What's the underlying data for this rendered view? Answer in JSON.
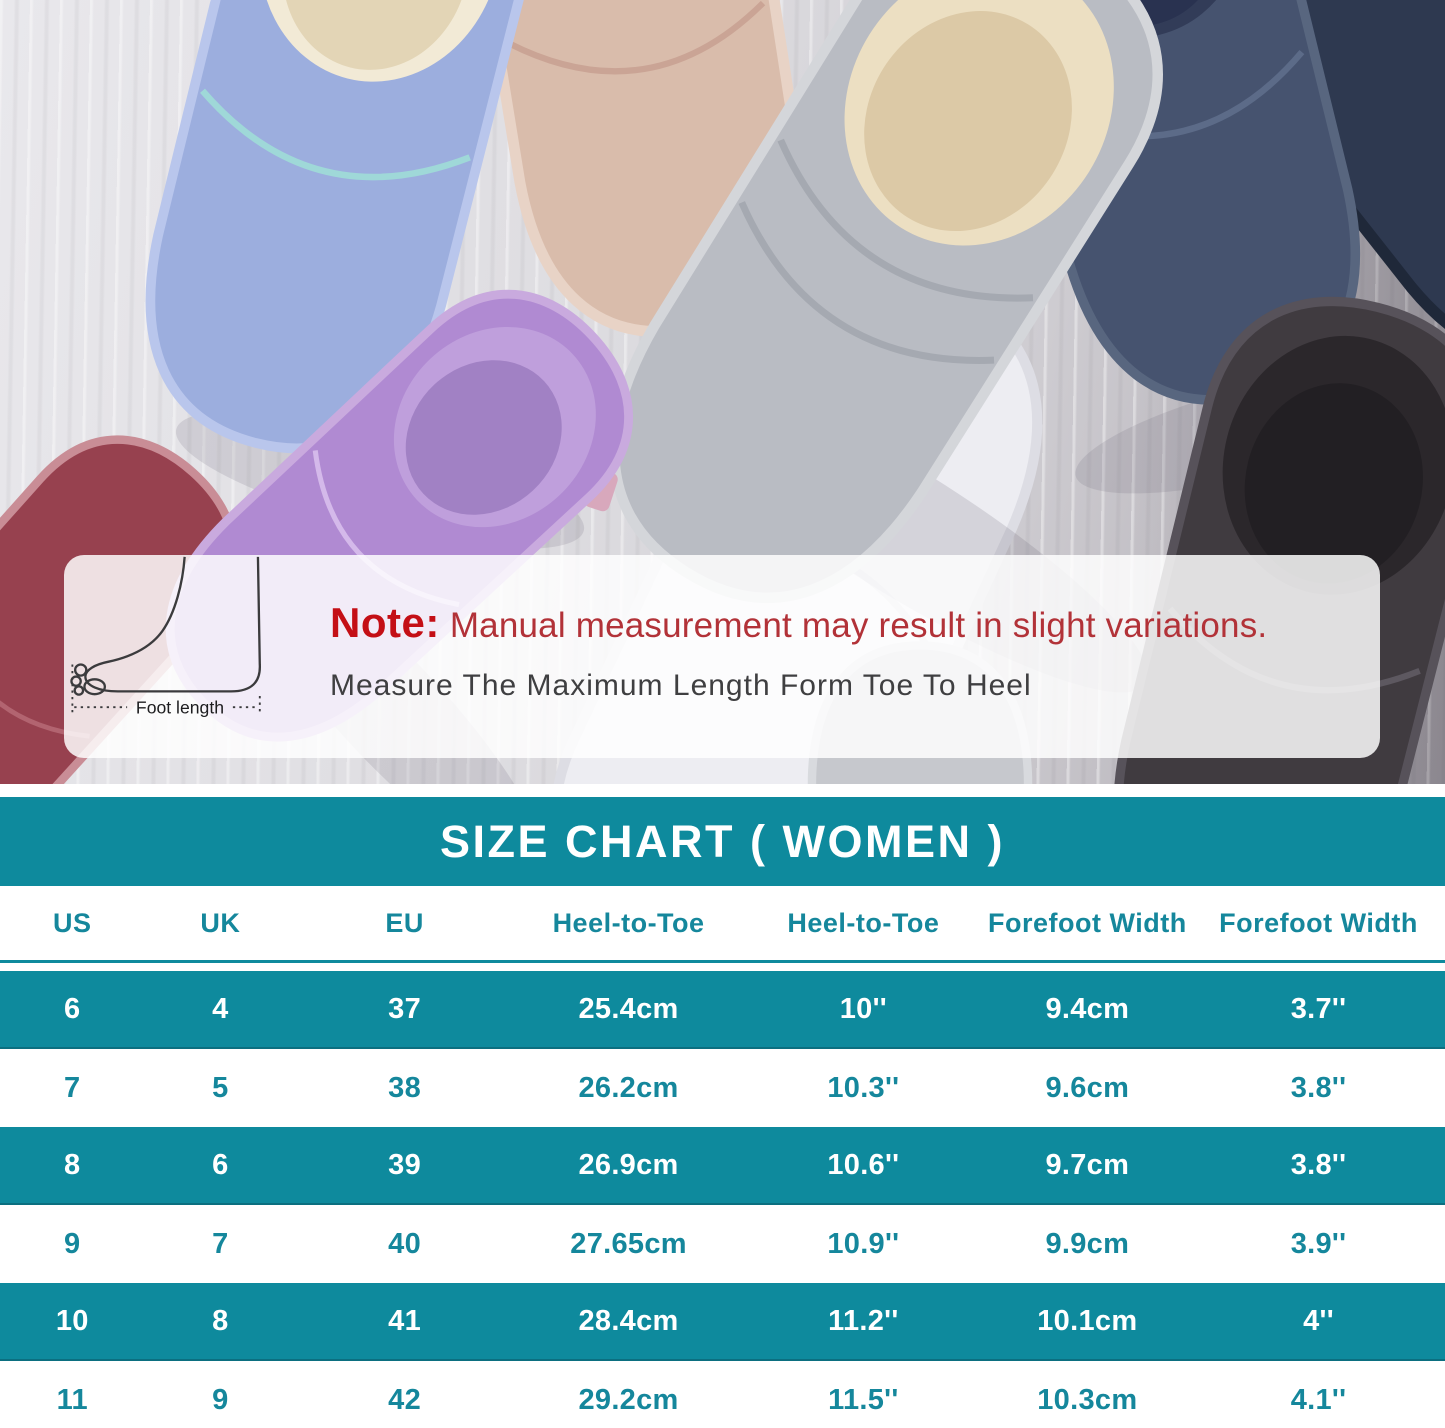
{
  "note": {
    "label": "Note:",
    "text": "Manual measurement may result in slight variations.",
    "subtext": "Measure The Maximum Length Form Toe To Heel",
    "foot_caption": "Foot length"
  },
  "size_chart": {
    "title": "SIZE CHART ( WOMEN )",
    "columns": [
      "US",
      "UK",
      "EU",
      "Heel-to-Toe",
      "Heel-to-Toe",
      "Forefoot Width",
      "Forefoot Width"
    ],
    "rows": [
      [
        "6",
        "4",
        "37",
        "25.4cm",
        "10''",
        "9.4cm",
        "3.7''"
      ],
      [
        "7",
        "5",
        "38",
        "26.2cm",
        "10.3''",
        "9.6cm",
        "3.8''"
      ],
      [
        "8",
        "6",
        "39",
        "26.9cm",
        "10.6''",
        "9.7cm",
        "3.8''"
      ],
      [
        "9",
        "7",
        "40",
        "27.65cm",
        "10.9''",
        "9.9cm",
        "3.9''"
      ],
      [
        "10",
        "8",
        "41",
        "28.4cm",
        "11.2''",
        "10.1cm",
        "4''"
      ],
      [
        "11",
        "9",
        "42",
        "29.2cm",
        "11.5''",
        "10.3cm",
        "4.1''"
      ]
    ]
  },
  "chart_data": {
    "type": "table",
    "title": "SIZE CHART ( WOMEN )",
    "columns": [
      "US",
      "UK",
      "EU",
      "Heel-to-Toe (cm)",
      "Heel-to-Toe (inch)",
      "Forefoot Width (cm)",
      "Forefoot Width (inch)"
    ],
    "rows": [
      [
        "6",
        "4",
        "37",
        "25.4cm",
        "10''",
        "9.4cm",
        "3.7''"
      ],
      [
        "7",
        "5",
        "38",
        "26.2cm",
        "10.3''",
        "9.6cm",
        "3.8''"
      ],
      [
        "8",
        "6",
        "39",
        "26.9cm",
        "10.6''",
        "9.7cm",
        "3.8''"
      ],
      [
        "9",
        "7",
        "40",
        "27.65cm",
        "10.9''",
        "9.9cm",
        "3.9''"
      ],
      [
        "10",
        "8",
        "41",
        "28.4cm",
        "11.2''",
        "10.1cm",
        "4''"
      ],
      [
        "11",
        "9",
        "42",
        "29.2cm",
        "11.5''",
        "10.3cm",
        "4.1''"
      ]
    ],
    "layout": {
      "header_background": "#0E8A9D",
      "alternating_rows": [
        "#0E8A9D",
        "#FFFFFF"
      ]
    }
  },
  "colors": {
    "teal": "#0E8A9D",
    "teal_dark": "#0B6F80",
    "teal_text": "#15879C",
    "note_red": "#C40F16",
    "note_red2": "#B23238",
    "note_dark": "#3F3F41"
  },
  "photo": {
    "slippers": [
      {
        "name": "lightblue",
        "color": "#9caede"
      },
      {
        "name": "beige",
        "color": "#d9bcab"
      },
      {
        "name": "gray",
        "color": "#b9bcc3"
      },
      {
        "name": "navy",
        "color": "#46536f"
      },
      {
        "name": "navydark",
        "color": "#2e3950"
      },
      {
        "name": "purple",
        "color": "#b08ad2"
      },
      {
        "name": "burgundy",
        "color": "#97414f"
      },
      {
        "name": "white",
        "color": "#ededf2"
      },
      {
        "name": "black",
        "color": "#403b40"
      },
      {
        "name": "graylight",
        "color": "#c6c8cd"
      }
    ],
    "background": "#dedde1"
  }
}
